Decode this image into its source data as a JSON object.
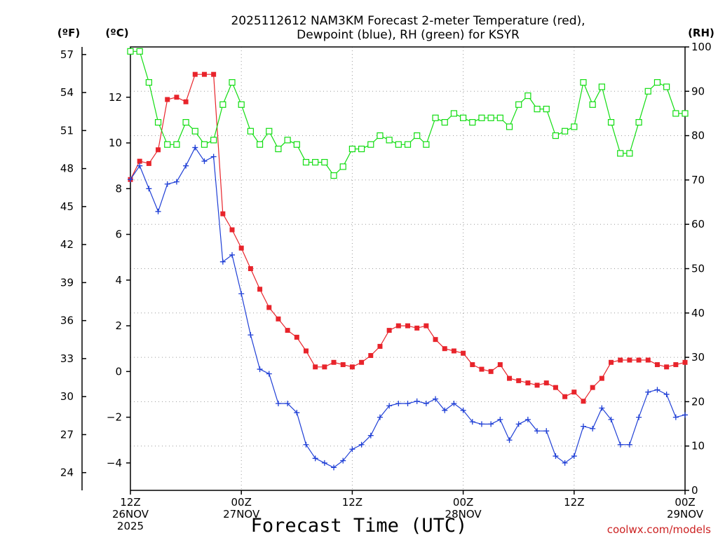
{
  "colors": {
    "temperature": "#e8242b",
    "dewpoint": "#1f3fd6",
    "rh": "#11dd11",
    "grid": "#9a9a9a",
    "source": "#cc2222"
  },
  "source_label": "coolwx.com/models",
  "chart_data": {
    "type": "line",
    "title": [
      "2025112612 NAM3KM Forecast 2-meter Temperature (red),",
      "Dewpoint (blue), RH (green) for KSYR"
    ],
    "xlabel": "Forecast Time (UTC)",
    "y_units": {
      "fahrenheit": "(ºF)",
      "celsius": "(ºC)",
      "rh": "(RH)"
    },
    "x_range_hours": [
      0,
      60
    ],
    "x_ticks": [
      {
        "hour": 0,
        "lines": [
          "12Z",
          "26NOV",
          "2025"
        ]
      },
      {
        "hour": 12,
        "lines": [
          "00Z",
          "27NOV"
        ]
      },
      {
        "hour": 24,
        "lines": [
          "12Z"
        ]
      },
      {
        "hour": 36,
        "lines": [
          "00Z",
          "28NOV"
        ]
      },
      {
        "hour": 48,
        "lines": [
          "12Z"
        ]
      },
      {
        "hour": 60,
        "lines": [
          "00Z",
          "29NOV"
        ]
      }
    ],
    "y_celsius": {
      "range": [
        -5.2,
        14.2
      ],
      "ticks": [
        -4,
        -2,
        0,
        2,
        4,
        6,
        8,
        10,
        12
      ]
    },
    "y_fahrenheit": {
      "range": [
        22.6,
        57.6
      ],
      "ticks": [
        24,
        27,
        30,
        33,
        36,
        39,
        42,
        45,
        48,
        51,
        54,
        57
      ]
    },
    "y_rh": {
      "range": [
        0,
        100
      ],
      "ticks": [
        0,
        10,
        20,
        30,
        40,
        50,
        60,
        70,
        80,
        90,
        100
      ]
    },
    "series": [
      {
        "name": "Temperature",
        "units": "C",
        "marker": "square-filled",
        "values": [
          8.4,
          9.2,
          9.1,
          9.7,
          11.9,
          12.0,
          11.8,
          13.0,
          13.0,
          13.0,
          6.9,
          6.2,
          5.4,
          4.5,
          3.6,
          2.8,
          2.3,
          1.8,
          1.5,
          0.9,
          0.2,
          0.2,
          0.4,
          0.3,
          0.2,
          0.4,
          0.7,
          1.1,
          1.8,
          2.0,
          2.0,
          1.9,
          2.0,
          1.4,
          1.0,
          0.9,
          0.8,
          0.3,
          0.1,
          0.0,
          0.3,
          -0.3,
          -0.4,
          -0.5,
          -0.6,
          -0.5,
          -0.7,
          -1.1,
          -0.9,
          -1.3,
          -0.7,
          -0.3,
          0.4,
          0.5,
          0.5,
          0.5,
          0.5,
          0.3,
          0.2,
          0.3,
          0.4
        ]
      },
      {
        "name": "Dewpoint",
        "units": "C",
        "marker": "plus",
        "values": [
          8.4,
          9.0,
          8.0,
          7.0,
          8.2,
          8.3,
          9.0,
          9.8,
          9.2,
          9.4,
          4.8,
          5.1,
          3.4,
          1.6,
          0.1,
          -0.1,
          -1.4,
          -1.4,
          -1.8,
          -3.2,
          -3.8,
          -4.0,
          -4.2,
          -3.9,
          -3.4,
          -3.2,
          -2.8,
          -2.0,
          -1.5,
          -1.4,
          -1.4,
          -1.3,
          -1.4,
          -1.2,
          -1.7,
          -1.4,
          -1.7,
          -2.2,
          -2.3,
          -2.3,
          -2.1,
          -3.0,
          -2.3,
          -2.1,
          -2.6,
          -2.6,
          -3.7,
          -4.0,
          -3.7,
          -2.4,
          -2.5,
          -1.6,
          -2.1,
          -3.2,
          -3.2,
          -2.0,
          -0.9,
          -0.8,
          -1.0,
          -2.0,
          -1.9
        ]
      },
      {
        "name": "RH",
        "units": "%",
        "marker": "square-open",
        "values": [
          99,
          99,
          92,
          83,
          78,
          78,
          83,
          81,
          78,
          79,
          87,
          92,
          87,
          81,
          78,
          81,
          77,
          79,
          78,
          74,
          74,
          74,
          71,
          73,
          77,
          77,
          78,
          80,
          79,
          78,
          78,
          80,
          78,
          84,
          83,
          85,
          84,
          83,
          84,
          84,
          84,
          82,
          87,
          89,
          86,
          86,
          80,
          81,
          82,
          92,
          87,
          91,
          83,
          76,
          76,
          83,
          90,
          92,
          91,
          85,
          85
        ]
      }
    ]
  }
}
